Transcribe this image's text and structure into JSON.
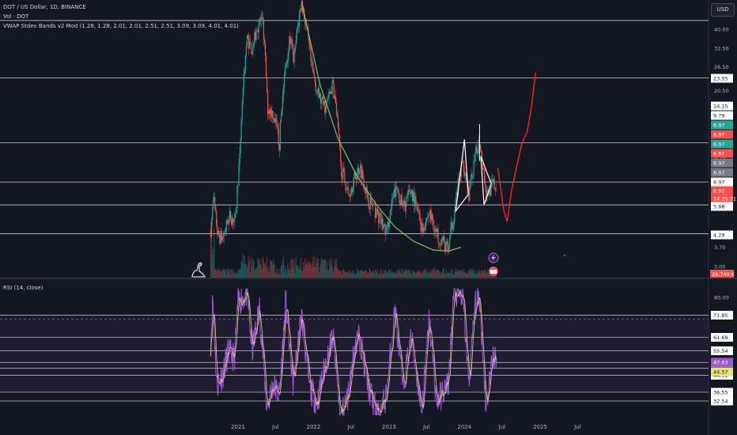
{
  "header": {
    "symbol_line": "DOT / US Dollar, 1D, BINANCE",
    "volume_line": "Vol · DOT",
    "indicator_line": "VWAP Stdev Bands v2 Mod (1.28, 1.28, 2.01, 2.01, 2.51, 2.51, 3.09, 3.09, 4.01, 4.01)",
    "currency": "USD"
  },
  "rsi_pane": {
    "title": "RSI (14, close)"
  },
  "colors": {
    "background": "#131722",
    "up": "#26a69a",
    "down": "#ef5350",
    "projection": "#ff1f1f",
    "cup_arc": "#7fbf6a",
    "rsi": "#9c59d1",
    "rsi_ma": "#d8c37a",
    "rsi_band": "#7e57c2"
  },
  "chart_data": [
    {
      "type": "candlestick",
      "title": "DOT / US Dollar, 1D, BINANCE",
      "y_scale": "log",
      "ylim": [
        2.7,
        55
      ],
      "x_ticks": [
        "2021",
        "Jul",
        "2022",
        "Jul",
        "2023",
        "Jul",
        "2024",
        "Jul",
        "2025",
        "Jul"
      ],
      "y_ticks": [
        "40.00",
        "32.50",
        "26.50",
        "20.50",
        "14.15",
        "9.79",
        "5.88",
        "4.29",
        "3.70",
        "3.00"
      ],
      "horizontal_levels": [
        44.0,
        23.55,
        11.6,
        7.55,
        5.88,
        4.29
      ],
      "price_labels": [
        {
          "text": "23.55",
          "kind": "plain"
        },
        {
          "text": "14.15",
          "kind": "plain"
        },
        {
          "text": "9.79",
          "kind": "plain"
        },
        {
          "text": "6.97",
          "kind": "green"
        },
        {
          "text": "6.97",
          "kind": "red"
        },
        {
          "text": "6.97",
          "kind": "green"
        },
        {
          "text": "6.97",
          "kind": "red"
        },
        {
          "text": "6.97",
          "kind": "gray"
        },
        {
          "text": "6.97",
          "kind": "gray"
        },
        {
          "text": "6.97",
          "kind": "plain"
        },
        {
          "text": "6.92",
          "kind": "current"
        },
        {
          "text": "14:35:31",
          "kind": "current"
        },
        {
          "text": "5.88",
          "kind": "plain"
        },
        {
          "text": "4.29",
          "kind": "plain"
        }
      ],
      "volume_label": "28.749 K",
      "price_path": [
        [
          "2020-08-22",
          4.5
        ],
        [
          "2020-09-05",
          6.2
        ],
        [
          "2020-09-25",
          4.2
        ],
        [
          "2020-10-20",
          4.1
        ],
        [
          "2020-11-20",
          5.2
        ],
        [
          "2020-12-20",
          5.0
        ],
        [
          "2021-01-10",
          10.0
        ],
        [
          "2021-02-14",
          36.0
        ],
        [
          "2021-03-10",
          32.0
        ],
        [
          "2021-04-15",
          44.0
        ],
        [
          "2021-05-01",
          42.0
        ],
        [
          "2021-05-23",
          17.0
        ],
        [
          "2021-06-20",
          16.0
        ],
        [
          "2021-07-20",
          11.5
        ],
        [
          "2021-08-20",
          27.0
        ],
        [
          "2021-09-10",
          36.0
        ],
        [
          "2021-09-28",
          28.0
        ],
        [
          "2021-11-04",
          54.0
        ],
        [
          "2021-11-25",
          42.0
        ],
        [
          "2021-12-20",
          27.0
        ],
        [
          "2022-01-20",
          20.0
        ],
        [
          "2022-02-10",
          18.0
        ],
        [
          "2022-03-01",
          17.0
        ],
        [
          "2022-04-05",
          22.0
        ],
        [
          "2022-05-12",
          9.0
        ],
        [
          "2022-06-18",
          6.5
        ],
        [
          "2022-08-14",
          9.0
        ],
        [
          "2022-09-20",
          6.3
        ],
        [
          "2022-11-10",
          5.2
        ],
        [
          "2022-12-20",
          4.3
        ],
        [
          "2023-01-30",
          6.8
        ],
        [
          "2023-02-15",
          6.8
        ],
        [
          "2023-03-10",
          5.6
        ],
        [
          "2023-04-18",
          6.9
        ],
        [
          "2023-06-10",
          4.5
        ],
        [
          "2023-07-15",
          5.4
        ],
        [
          "2023-08-20",
          4.3
        ],
        [
          "2023-10-15",
          3.6
        ],
        [
          "2023-11-10",
          5.2
        ],
        [
          "2023-12-25",
          9.5
        ],
        [
          "2024-01-23",
          6.5
        ],
        [
          "2024-03-14",
          12.0
        ],
        [
          "2024-04-15",
          6.5
        ],
        [
          "2024-05-20",
          7.4
        ],
        [
          "2024-06-05",
          6.92
        ]
      ],
      "projection_path": [
        [
          "2024-06-10",
          8.8
        ],
        [
          "2024-06-25",
          7.0
        ],
        [
          "2024-07-10",
          5.5
        ],
        [
          "2024-07-25",
          4.9
        ],
        [
          "2024-08-15",
          6.8
        ],
        [
          "2024-09-10",
          9.0
        ],
        [
          "2024-10-05",
          11.5
        ],
        [
          "2024-10-30",
          13.0
        ],
        [
          "2024-11-20",
          17.0
        ],
        [
          "2024-12-10",
          25.0
        ]
      ],
      "cup_arc": [
        [
          "2021-11-04",
          54.0
        ],
        [
          "2022-02-01",
          22.0
        ],
        [
          "2022-05-01",
          12.0
        ],
        [
          "2022-08-01",
          8.0
        ],
        [
          "2022-11-01",
          5.9
        ],
        [
          "2023-02-01",
          4.6
        ],
        [
          "2023-05-01",
          3.95
        ],
        [
          "2023-08-01",
          3.6
        ],
        [
          "2023-10-15",
          3.55
        ],
        [
          "2023-12-15",
          3.7
        ]
      ],
      "triangles": [
        [
          [
            "2023-11-20",
            5.5
          ],
          [
            "2024-01-01",
            12.0
          ],
          [
            "2024-01-20",
            6.6
          ]
        ],
        [
          [
            "2024-03-20",
            10.0
          ],
          [
            "2024-05-10",
            7.4
          ],
          [
            "2024-04-05",
            5.9
          ]
        ]
      ]
    },
    {
      "type": "line",
      "title": "RSI (14, close)",
      "ylim": [
        30,
        84
      ],
      "y_ticks": [
        "80.00",
        "71.85",
        "61.69",
        "55.54",
        "50.19",
        "44.31",
        "36.55",
        "32.54"
      ],
      "horizontal_levels": [
        71.85,
        61.69,
        55.54,
        50.19,
        47.63,
        44.31,
        36.55,
        32.54
      ],
      "band": [
        70,
        30
      ],
      "badges": [
        {
          "text": "47.63",
          "kind": "rsi"
        },
        {
          "text": "44.57",
          "kind": "ma"
        }
      ],
      "rsi_path": [
        [
          "2020-08-22",
          60
        ],
        [
          "2020-09-01",
          80
        ],
        [
          "2020-09-20",
          40
        ],
        [
          "2020-10-20",
          45
        ],
        [
          "2020-11-15",
          55
        ],
        [
          "2020-12-15",
          52
        ],
        [
          "2021-01-01",
          78
        ],
        [
          "2021-02-15",
          82
        ],
        [
          "2021-03-10",
          55
        ],
        [
          "2021-04-15",
          75
        ],
        [
          "2021-05-20",
          30
        ],
        [
          "2021-06-20",
          40
        ],
        [
          "2021-07-20",
          35
        ],
        [
          "2021-08-20",
          78
        ],
        [
          "2021-09-25",
          40
        ],
        [
          "2021-11-04",
          72
        ],
        [
          "2021-12-15",
          38
        ],
        [
          "2022-01-20",
          32
        ],
        [
          "2022-03-01",
          50
        ],
        [
          "2022-04-05",
          62
        ],
        [
          "2022-05-12",
          25
        ],
        [
          "2022-06-18",
          35
        ],
        [
          "2022-07-20",
          58
        ],
        [
          "2022-08-14",
          62
        ],
        [
          "2022-09-20",
          40
        ],
        [
          "2022-11-10",
          25
        ],
        [
          "2022-12-20",
          35
        ],
        [
          "2023-01-30",
          75
        ],
        [
          "2023-03-10",
          38
        ],
        [
          "2023-04-18",
          62
        ],
        [
          "2023-06-10",
          28
        ],
        [
          "2023-07-15",
          70
        ],
        [
          "2023-08-20",
          32
        ],
        [
          "2023-10-15",
          40
        ],
        [
          "2023-11-10",
          82
        ],
        [
          "2023-12-25",
          80
        ],
        [
          "2024-01-23",
          40
        ],
        [
          "2024-02-20",
          76
        ],
        [
          "2024-03-14",
          80
        ],
        [
          "2024-04-15",
          30
        ],
        [
          "2024-05-20",
          55
        ],
        [
          "2024-06-05",
          47.63
        ]
      ]
    }
  ]
}
